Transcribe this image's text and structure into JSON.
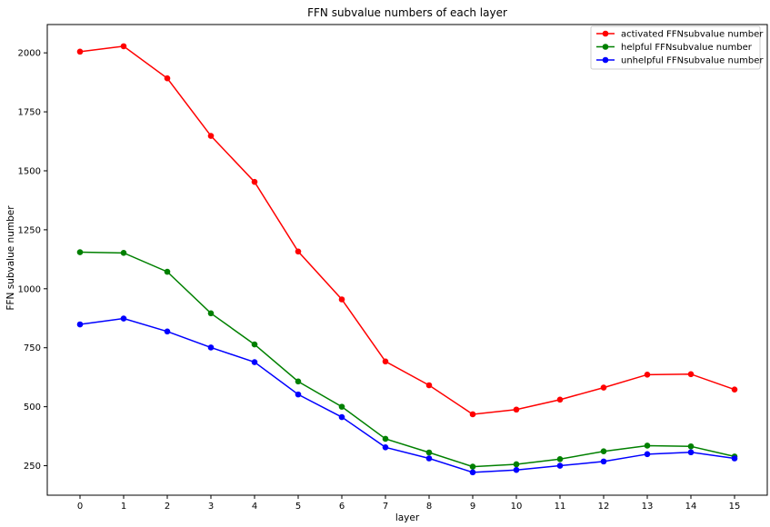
{
  "chart_data": {
    "type": "line",
    "title": "FFN subvalue numbers of each layer",
    "xlabel": "layer",
    "ylabel": "FFN subvalue number",
    "x": [
      0,
      1,
      2,
      3,
      4,
      5,
      6,
      7,
      8,
      9,
      10,
      11,
      12,
      13,
      14,
      15
    ],
    "xticks": [
      "0",
      "1",
      "2",
      "3",
      "4",
      "5",
      "6",
      "7",
      "8",
      "9",
      "10",
      "11",
      "12",
      "13",
      "14",
      "15"
    ],
    "yticks": [
      "250",
      "500",
      "750",
      "1000",
      "1250",
      "1500",
      "1750",
      "2000"
    ],
    "ylim": [
      125,
      2120
    ],
    "xlim": [
      -0.75,
      15.75
    ],
    "grid": false,
    "legend_position": "top-right",
    "series": [
      {
        "name": "activated FFNsubvalue number",
        "color": "#ff0000",
        "values": [
          2005,
          2028,
          1892,
          1648,
          1453,
          1158,
          955,
          692,
          591,
          468,
          488,
          530,
          581,
          636,
          638,
          573
        ]
      },
      {
        "name": "helpful FFNsubvalue number",
        "color": "#008000",
        "values": [
          1155,
          1152,
          1072,
          896,
          764,
          607,
          500,
          364,
          306,
          246,
          256,
          278,
          311,
          335,
          332,
          289
        ]
      },
      {
        "name": "unhelpful FFNsubvalue number",
        "color": "#0000ff",
        "values": [
          849,
          874,
          819,
          751,
          689,
          552,
          456,
          328,
          281,
          222,
          232,
          250,
          268,
          299,
          307,
          281
        ]
      }
    ]
  }
}
